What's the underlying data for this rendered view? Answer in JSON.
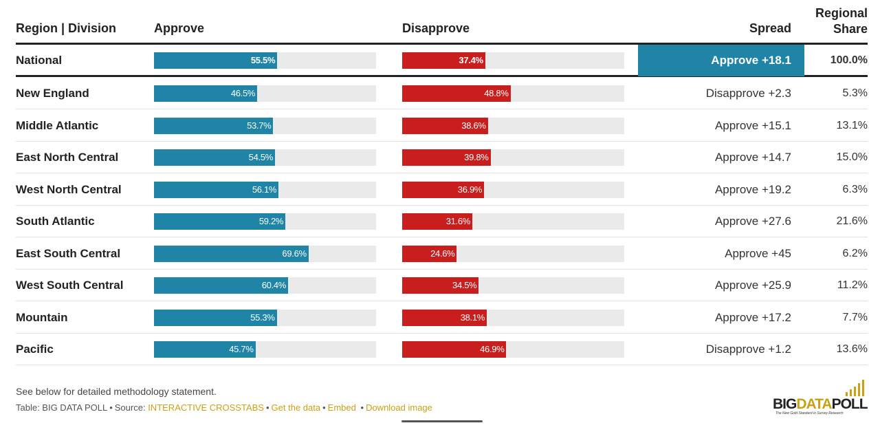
{
  "header": {
    "region": "Region | Division",
    "approve": "Approve",
    "disapprove": "Disapprove",
    "spread": "Spread",
    "share_line1": "Regional",
    "share_line2": "Share"
  },
  "chart_data": {
    "type": "bar",
    "categories": [
      "National",
      "New England",
      "Middle Atlantic",
      "East North Central",
      "West North Central",
      "South Atlantic",
      "East South Central",
      "West South Central",
      "Mountain",
      "Pacific"
    ],
    "series": [
      {
        "name": "Approve",
        "values": [
          55.5,
          46.5,
          53.7,
          54.5,
          56.1,
          59.2,
          69.6,
          60.4,
          55.3,
          45.7
        ]
      },
      {
        "name": "Disapprove",
        "values": [
          37.4,
          48.8,
          38.6,
          39.8,
          36.9,
          31.6,
          24.6,
          34.5,
          38.1,
          46.9
        ]
      }
    ],
    "approve_labels": [
      "55.5%",
      "46.5%",
      "53.7%",
      "54.5%",
      "56.1%",
      "59.2%",
      "69.6%",
      "60.4%",
      "55.3%",
      "45.7%"
    ],
    "disapprove_labels": [
      "37.4%",
      "48.8%",
      "38.6%",
      "39.8%",
      "36.9%",
      "31.6%",
      "24.6%",
      "34.5%",
      "38.1%",
      "46.9%"
    ],
    "spread": [
      "Approve +18.1",
      "Disapprove +2.3",
      "Approve +15.1",
      "Approve +14.7",
      "Approve +19.2",
      "Approve +27.6",
      "Approve +45",
      "Approve +25.9",
      "Approve +17.2",
      "Disapprove +1.2"
    ],
    "regional_share": [
      "100.0%",
      "5.3%",
      "13.1%",
      "15.0%",
      "6.3%",
      "21.6%",
      "6.2%",
      "11.2%",
      "7.7%",
      "13.6%"
    ],
    "xlim": [
      0,
      100
    ],
    "colors": {
      "approve": "#1f84a6",
      "disapprove": "#c81e1e",
      "track": "#eaeaea"
    }
  },
  "footer": {
    "note": "See below for detailed methodology statement.",
    "table_credit": "Table: BIG DATA POLL",
    "source_label": "Source:",
    "source_link": "INTERACTIVE CROSSTABS",
    "get_data": "Get the data",
    "embed": "Embed",
    "download": "Download image",
    "separator": "•"
  },
  "logo": {
    "text_big": "BIG",
    "text_data": "DATA",
    "text_poll": "POLL",
    "tagline": "The New Gold Standard in Survey Research"
  }
}
